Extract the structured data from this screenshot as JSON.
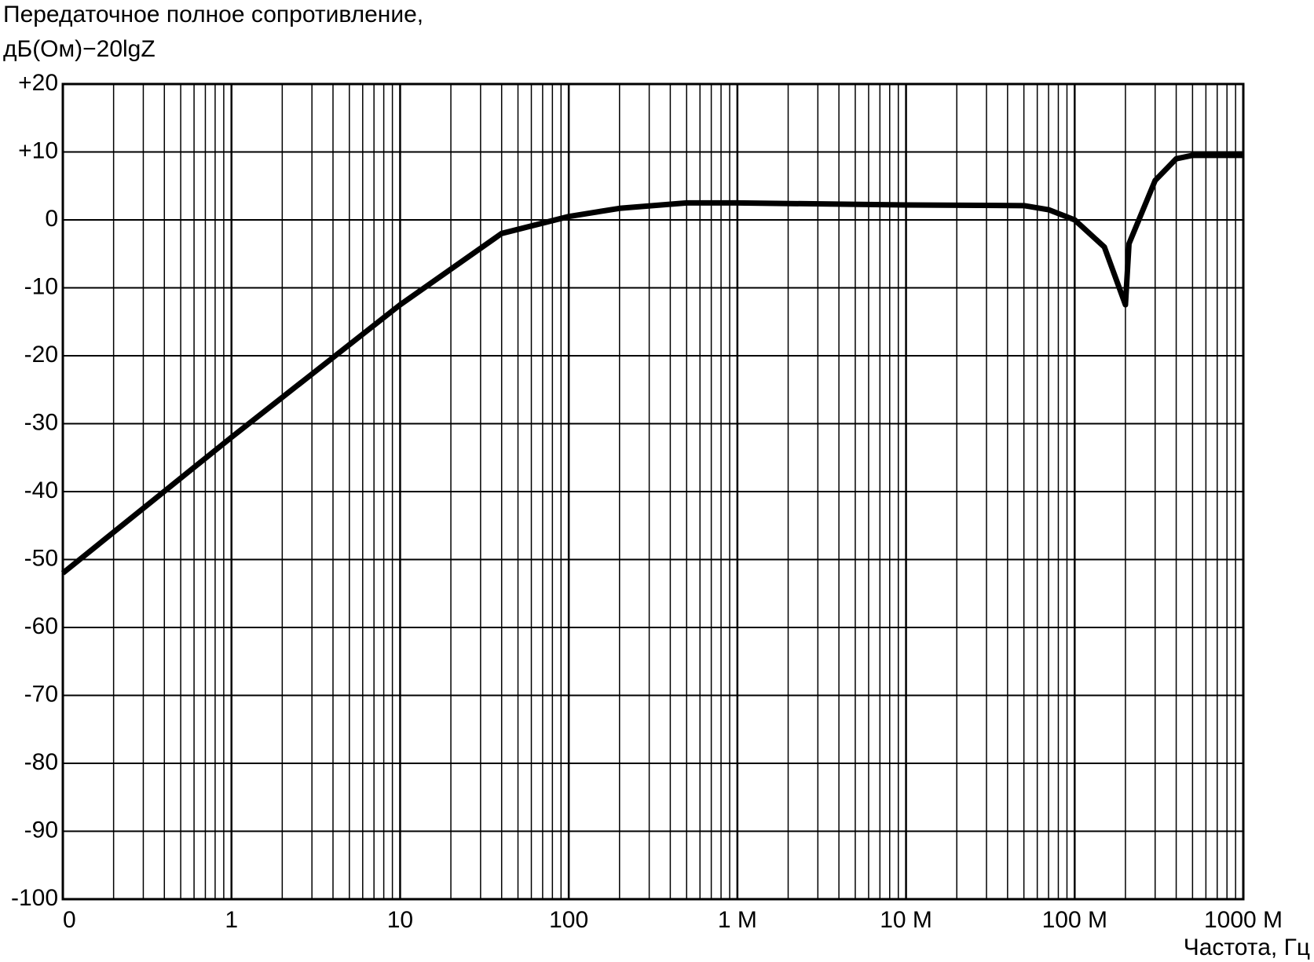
{
  "chart_data": {
    "type": "line",
    "title": "Передаточное полное сопротивление,",
    "subtitle": "дБ(Ом)−20lgZ",
    "x_label": "Частота, Гц",
    "x_scale": "log",
    "grid": true,
    "minor_grid": true,
    "xlim": [
      0.1,
      1000000
    ],
    "xticks": [
      {
        "value": 0.1,
        "label": "0"
      },
      1,
      10,
      100,
      {
        "value": 1000,
        "label": "1 M"
      },
      {
        "value": 10000,
        "label": "10 M"
      },
      {
        "value": 100000,
        "label": "100 M"
      },
      {
        "value": 1000000,
        "label": "1000 M"
      }
    ],
    "ylim": [
      -100,
      20
    ],
    "yticks": [
      -100,
      -90,
      -80,
      -70,
      -60,
      -50,
      -40,
      -30,
      -20,
      -10,
      0,
      {
        "value": 10,
        "label": "+10"
      },
      {
        "value": 20,
        "label": "+20"
      }
    ],
    "x": [
      0.1,
      1,
      10,
      40,
      100,
      200,
      500,
      1000,
      10000,
      50000,
      70000,
      100000,
      150000,
      200000,
      210000,
      300000,
      400000,
      500000,
      1000000
    ],
    "series": [
      {
        "color": "#000000",
        "values": [
          -52,
          -32,
          -12.5,
          -2,
          0.5,
          1.7,
          2.5,
          2.5,
          2.2,
          2.1,
          1.5,
          0,
          -4,
          -12.5,
          -3.5,
          5.8,
          9,
          9.5,
          9.5
        ]
      }
    ]
  }
}
